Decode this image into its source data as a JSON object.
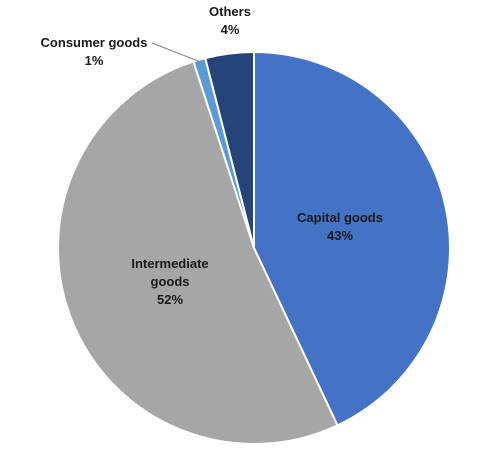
{
  "chart_data": {
    "type": "pie",
    "title": "",
    "slices": [
      {
        "label": "Capital goods",
        "value": 43,
        "percent_label": "43%",
        "color": "#4472c4"
      },
      {
        "label": "Intermediate goods",
        "value": 52,
        "percent_label": "52%",
        "color": "#a6a6a6"
      },
      {
        "label": "Consumer goods",
        "value": 1,
        "percent_label": "1%",
        "color": "#5b9bd5"
      },
      {
        "label": "Others",
        "value": 4,
        "percent_label": "4%",
        "color": "#264478"
      }
    ],
    "start_angle": "12 o'clock",
    "direction": "clockwise",
    "legend": "none",
    "label_position": "on slices (Consumer goods and Others outside)"
  }
}
